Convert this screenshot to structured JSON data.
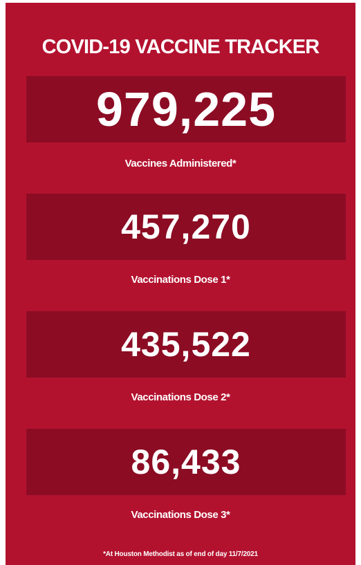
{
  "title": "COVID-19 VACCINE TRACKER",
  "stats": [
    {
      "value": "979,225",
      "label": "Vaccines Administered*"
    },
    {
      "value": "457,270",
      "label": "Vaccinations Dose 1*"
    },
    {
      "value": "435,522",
      "label": "Vaccinations Dose 2*"
    },
    {
      "value": "86,433",
      "label": "Vaccinations Dose 3*"
    }
  ],
  "footnote": "*At Houston Methodist as of end of day 11/7/2021"
}
